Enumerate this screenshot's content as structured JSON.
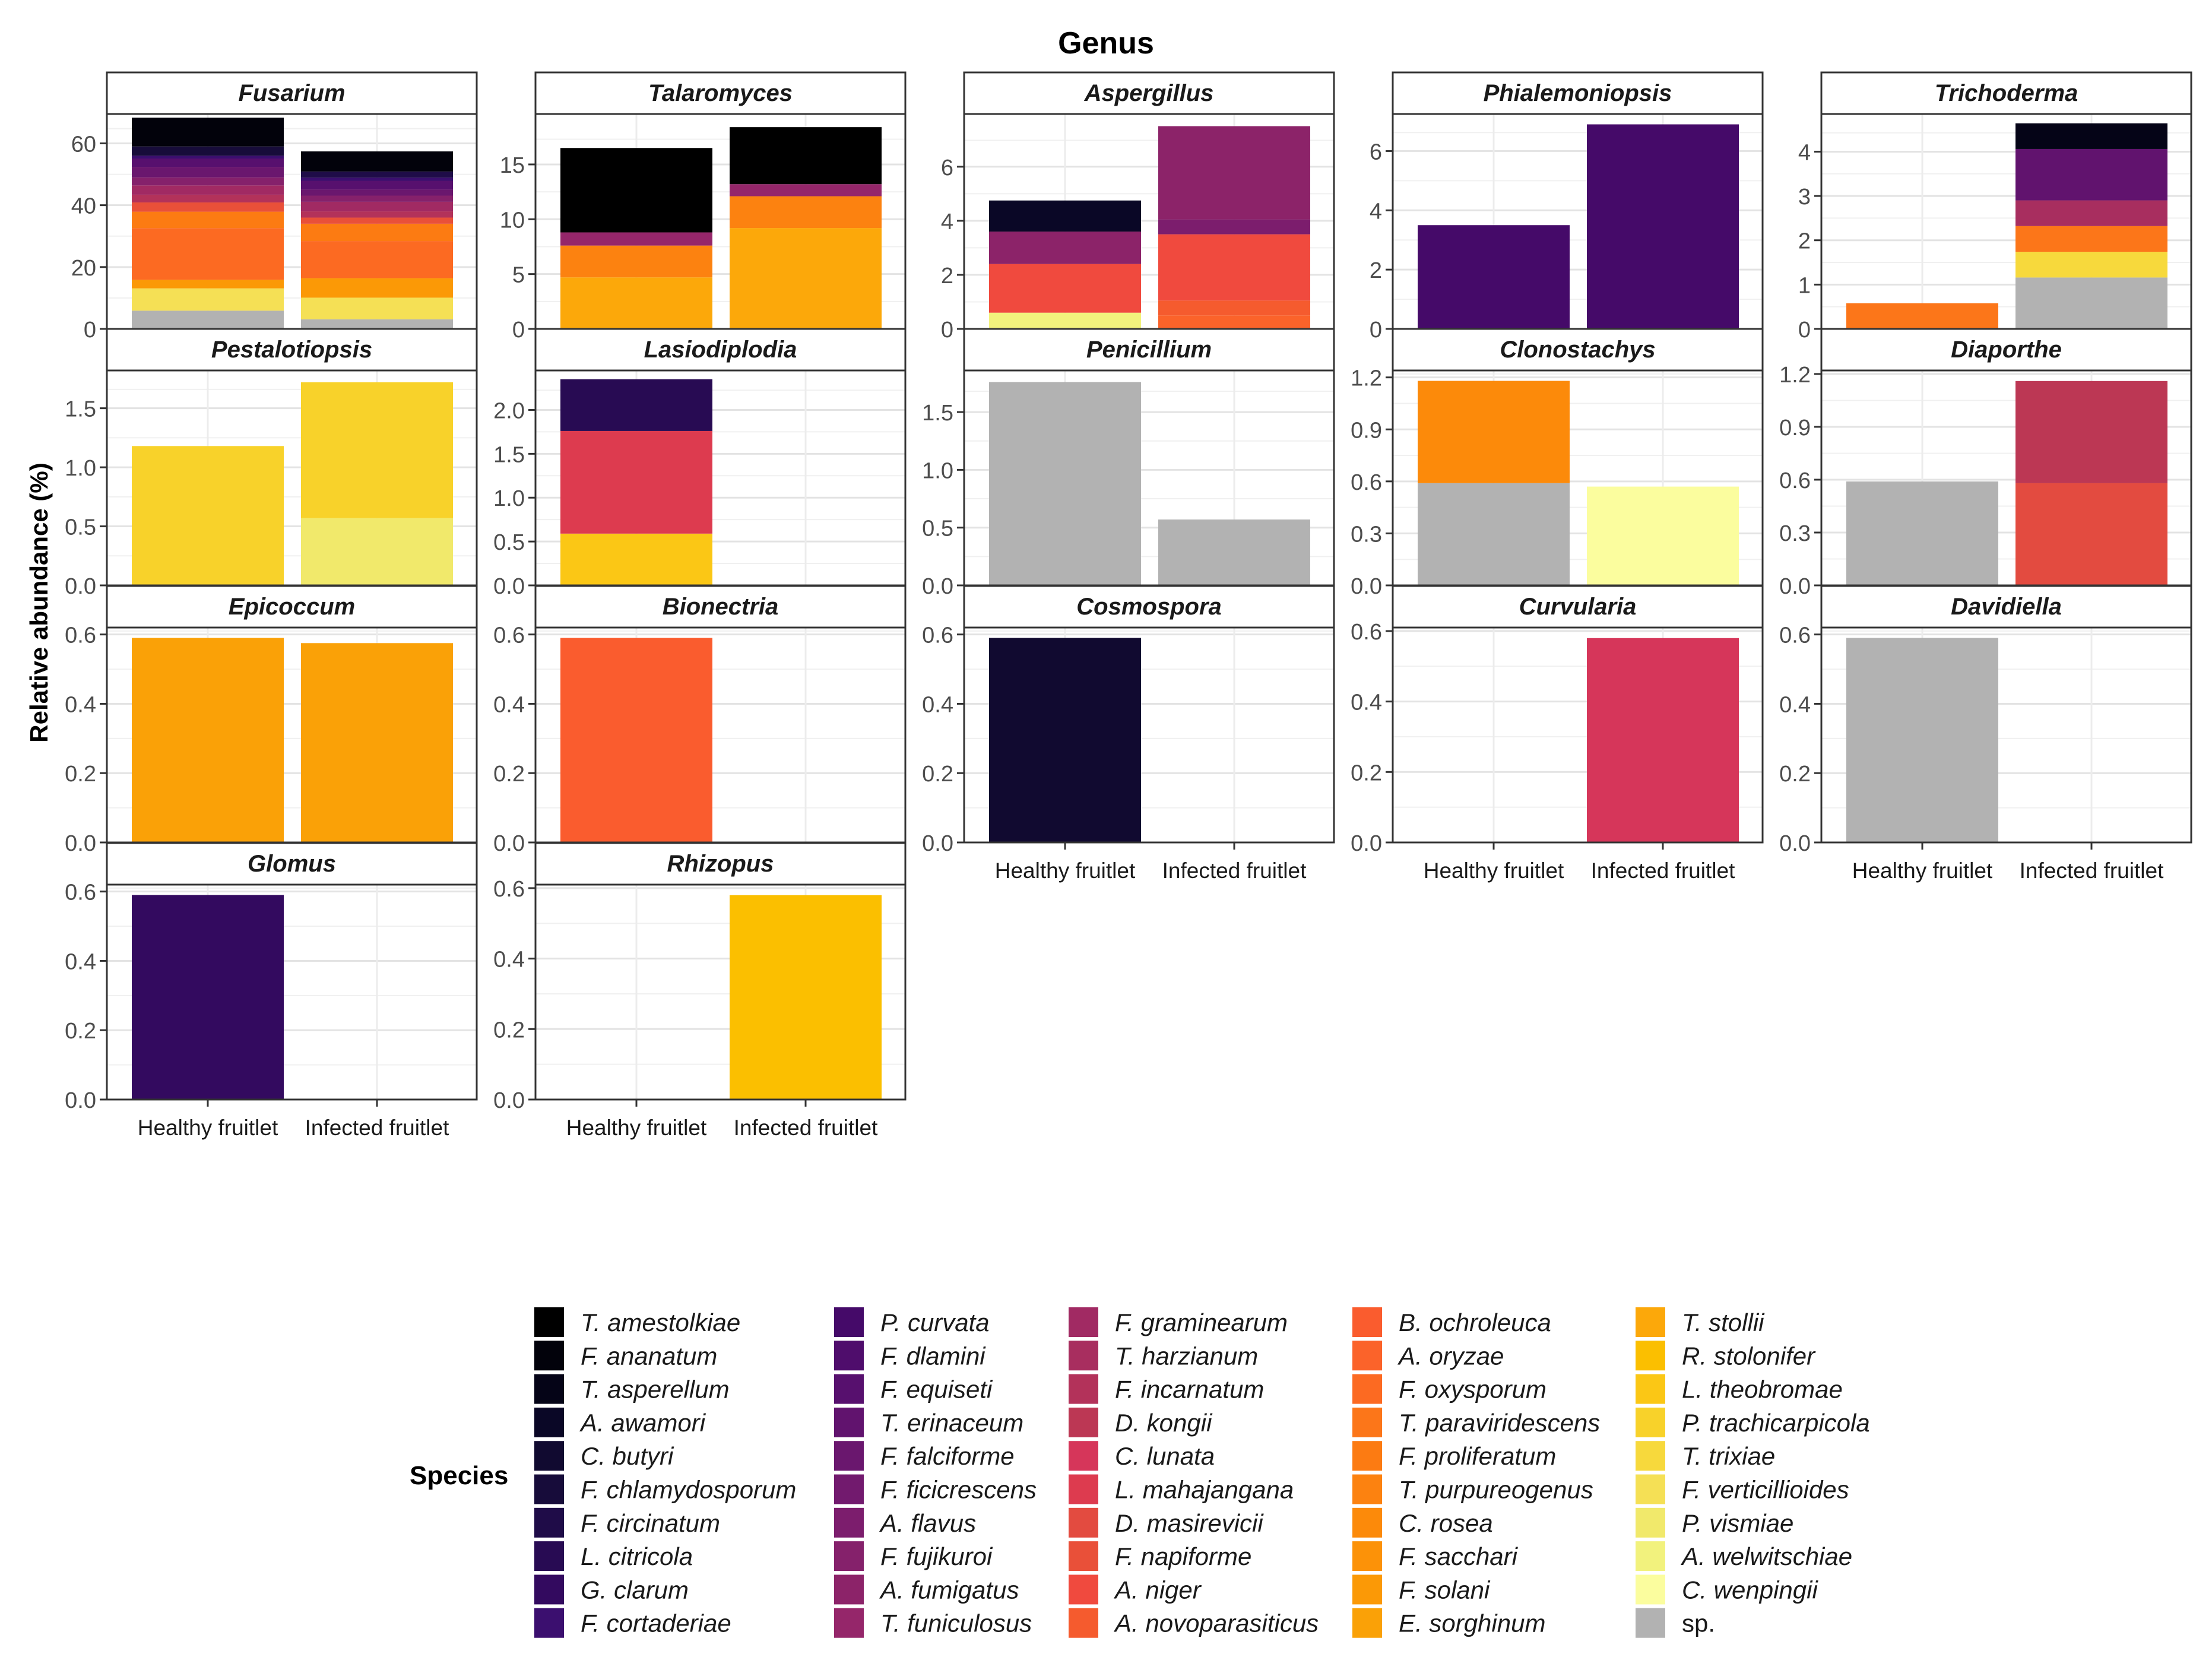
{
  "chart_data": {
    "type": "bar",
    "stacked": true,
    "title": "Genus",
    "ylabel": "Relative abundance (%)",
    "categories": [
      "Healthy fruitlet",
      "Infected fruitlet"
    ],
    "legend_title": "Species",
    "palette": {
      "T. amestolkiae": "#000000",
      "F. ananatum": "#02020b",
      "T. asperellum": "#050417",
      "A. awamori": "#0a0726",
      "C. butyri": "#110a30",
      "F. chlamydosporum": "#170c3a",
      "F. circinatum": "#1f0c48",
      "L. citricola": "#280b53",
      "G. clarum": "#330a5f",
      "F. cortaderiae": "#3b0f6f",
      "P. curvata": "#450a69",
      "F. dlamini": "#4f0d6c",
      "F. equiseti": "#57106e",
      "T. erinaceum": "#61136e",
      "F. falciforme": "#6a176e",
      "F. ficicrescens": "#721a6e",
      "A. flavus": "#7c1d6d",
      "F. fujikuroi": "#85216b",
      "A. fumigatus": "#8c2369",
      "T. funiculosus": "#95266a",
      "F. graminearum": "#a12a63",
      "T. harzianum": "#a82e5f",
      "F. incarnatum": "#b3325a",
      "D. kongii": "#bc3754",
      "C. lunata": "#d6365a",
      "L. mahajangana": "#dd3b4f",
      "D. masirevicii": "#e34b40",
      "F. napiforme": "#e95039",
      "A. niger": "#f04a3e",
      "A. novoparasiticus": "#f55b2e",
      "B. ochroleuca": "#fa5c2e",
      "A. oryzae": "#fb632a",
      "F. oxysporum": "#fc6a22",
      "T. paraviridescens": "#fc7619",
      "F. proliferatum": "#fc7b12",
      "T. purpureogenus": "#fc8210",
      "C. rosea": "#fc8a0a",
      "F. sacchari": "#fc9208",
      "F. solani": "#fb9906",
      "E. sorghinum": "#faa107",
      "T. stollii": "#fca80a",
      "R. stolonifer": "#fbbf00",
      "L. theobromae": "#fbc715",
      "P. trachicarpicola": "#f8d22a",
      "T. trixiae": "#f7d93c",
      "F. verticillioides": "#f5e055",
      "P. vismiae": "#f1e96b",
      "A. welwitschiae": "#f2f27d",
      "C. wenpingii": "#fbfd9e",
      "sp.": "#b2b2b2"
    },
    "panels": [
      {
        "genus": "Fusarium",
        "ylim": [
          0,
          69.5
        ],
        "yticks": [
          0,
          20,
          40,
          60
        ],
        "tick_labels": [
          "0",
          "20",
          "40",
          "60"
        ],
        "stacks": [
          [
            [
              "sp.",
              5.9
            ],
            [
              "F. verticillioides",
              7.2
            ],
            [
              "F. solani",
              2.8
            ],
            [
              "F. oxysporum",
              16.7
            ],
            [
              "F. proliferatum",
              5.3
            ],
            [
              "F. napiforme",
              3.0
            ],
            [
              "F. incarnatum",
              2.5
            ],
            [
              "F. graminearum",
              3.0
            ],
            [
              "F. fujikuroi",
              2.6
            ],
            [
              "F. falciforme",
              3.4
            ],
            [
              "F. equiseti",
              2.7
            ],
            [
              "F. cortaderiae",
              0.9
            ],
            [
              "F. chlamydosporum",
              3.0
            ],
            [
              "F. ananatum",
              9.3
            ]
          ],
          [
            [
              "sp.",
              3.1
            ],
            [
              "F. verticillioides",
              7.0
            ],
            [
              "F. solani",
              6.3
            ],
            [
              "F. oxysporum",
              12.0
            ],
            [
              "F. proliferatum",
              5.6
            ],
            [
              "F. napiforme",
              2.0
            ],
            [
              "F. incarnatum",
              2.0
            ],
            [
              "F. graminearum",
              3.1
            ],
            [
              "F. fujikuroi",
              2.0
            ],
            [
              "F. falciforme",
              2.0
            ],
            [
              "F. equiseti",
              2.8
            ],
            [
              "F. cortaderiae",
              1.0
            ],
            [
              "F. circinatum",
              2.0
            ],
            [
              "F. ananatum",
              6.5
            ]
          ]
        ]
      },
      {
        "genus": "Talaromyces",
        "ylim": [
          0,
          19.6
        ],
        "yticks": [
          0,
          5,
          10,
          15
        ],
        "tick_labels": [
          "0",
          "5",
          "10",
          "15"
        ],
        "stacks": [
          [
            [
              "T. stollii",
              4.7
            ],
            [
              "T. purpureogenus",
              2.9
            ],
            [
              "T. funiculosus",
              1.2
            ],
            [
              "T. amestolkiae",
              7.7
            ]
          ],
          [
            [
              "T. stollii",
              9.2
            ],
            [
              "T. purpureogenus",
              2.9
            ],
            [
              "T. funiculosus",
              1.1
            ],
            [
              "T. amestolkiae",
              5.2
            ]
          ]
        ]
      },
      {
        "genus": "Aspergillus",
        "ylim": [
          0,
          7.95
        ],
        "yticks": [
          0,
          2,
          4,
          6
        ],
        "tick_labels": [
          "0",
          "2",
          "4",
          "6"
        ],
        "stacks": [
          [
            [
              "A. welwitschiae",
              0.6
            ],
            [
              "A. niger",
              1.8
            ],
            [
              "A. fumigatus",
              1.2
            ],
            [
              "A. awamori",
              1.15
            ]
          ],
          [
            [
              "A. oryzae",
              0.5
            ],
            [
              "A. novoparasiticus",
              0.55
            ],
            [
              "A. niger",
              2.45
            ],
            [
              "A. flavus",
              0.55
            ],
            [
              "A. fumigatus",
              3.45
            ]
          ]
        ]
      },
      {
        "genus": "Phialemoniopsis",
        "ylim": [
          0,
          7.25
        ],
        "yticks": [
          0,
          2,
          4,
          6
        ],
        "tick_labels": [
          "0",
          "2",
          "4",
          "6"
        ],
        "stacks": [
          [
            [
              "P. curvata",
              3.5
            ]
          ],
          [
            [
              "P. curvata",
              6.9
            ]
          ]
        ]
      },
      {
        "genus": "Trichoderma",
        "ylim": [
          0,
          4.85
        ],
        "yticks": [
          0,
          1,
          2,
          3,
          4
        ],
        "tick_labels": [
          "0",
          "1",
          "2",
          "3",
          "4"
        ],
        "stacks": [
          [
            [
              "T. paraviridescens",
              0.58
            ]
          ],
          [
            [
              "sp.",
              1.16
            ],
            [
              "T. trixiae",
              0.58
            ],
            [
              "T. paraviridescens",
              0.58
            ],
            [
              "T. harzianum",
              0.58
            ],
            [
              "T. erinaceum",
              1.16
            ],
            [
              "T. asperellum",
              0.58
            ]
          ]
        ]
      },
      {
        "genus": "Pestalotiopsis",
        "ylim": [
          0,
          1.82
        ],
        "yticks": [
          0,
          0.5,
          1,
          1.5
        ],
        "tick_labels": [
          "0.0",
          "0.5",
          "1.0",
          "1.5"
        ],
        "stacks": [
          [
            [
              "P. trachicarpicola",
              1.18
            ]
          ],
          [
            [
              "P. vismiae",
              0.57
            ],
            [
              "P. trachicarpicola",
              1.15
            ]
          ]
        ]
      },
      {
        "genus": "Lasiodiplodia",
        "ylim": [
          0,
          2.45
        ],
        "yticks": [
          0,
          0.5,
          1,
          1.5,
          2
        ],
        "tick_labels": [
          "0.0",
          "0.5",
          "1.0",
          "1.5",
          "2.0"
        ],
        "stacks": [
          [
            [
              "L. theobromae",
              0.59
            ],
            [
              "L. mahajangana",
              1.17
            ],
            [
              "L. citricola",
              0.59
            ]
          ],
          []
        ]
      },
      {
        "genus": "Penicillium",
        "ylim": [
          0,
          1.86
        ],
        "yticks": [
          0,
          0.5,
          1,
          1.5
        ],
        "tick_labels": [
          "0.0",
          "0.5",
          "1.0",
          "1.5"
        ],
        "stacks": [
          [
            [
              "sp.",
              1.76
            ]
          ],
          [
            [
              "sp.",
              0.57
            ]
          ]
        ]
      },
      {
        "genus": "Clonostachys",
        "ylim": [
          0,
          1.24
        ],
        "yticks": [
          0,
          0.3,
          0.6,
          0.9,
          1.2
        ],
        "tick_labels": [
          "0.0",
          "0.3",
          "0.6",
          "0.9",
          "1.2"
        ],
        "stacks": [
          [
            [
              "sp.",
              0.59
            ],
            [
              "C. rosea",
              0.59
            ]
          ],
          [
            [
              "C. wenpingii",
              0.57
            ]
          ]
        ]
      },
      {
        "genus": "Diaporthe",
        "ylim": [
          0,
          1.22
        ],
        "yticks": [
          0,
          0.3,
          0.6,
          0.9,
          1.2
        ],
        "tick_labels": [
          "0.0",
          "0.3",
          "0.6",
          "0.9",
          "1.2"
        ],
        "stacks": [
          [
            [
              "sp.",
              0.59
            ]
          ],
          [
            [
              "D. masirevicii",
              0.58
            ],
            [
              "D. kongii",
              0.58
            ]
          ]
        ]
      },
      {
        "genus": "Epicoccum",
        "ylim": [
          0,
          0.62
        ],
        "yticks": [
          0,
          0.2,
          0.4,
          0.6
        ],
        "tick_labels": [
          "0.0",
          "0.2",
          "0.4",
          "0.6"
        ],
        "stacks": [
          [
            [
              "E. sorghinum",
              0.59
            ]
          ],
          [
            [
              "E. sorghinum",
              0.575
            ]
          ]
        ]
      },
      {
        "genus": "Bionectria",
        "ylim": [
          0,
          0.62
        ],
        "yticks": [
          0,
          0.2,
          0.4,
          0.6
        ],
        "tick_labels": [
          "0.0",
          "0.2",
          "0.4",
          "0.6"
        ],
        "stacks": [
          [
            [
              "B. ochroleuca",
              0.59
            ]
          ],
          []
        ]
      },
      {
        "genus": "Cosmospora",
        "ylim": [
          0,
          0.62
        ],
        "yticks": [
          0,
          0.2,
          0.4,
          0.6
        ],
        "tick_labels": [
          "0.0",
          "0.2",
          "0.4",
          "0.6"
        ],
        "stacks": [
          [
            [
              "C. butyri",
              0.59
            ]
          ],
          []
        ]
      },
      {
        "genus": "Curvularia",
        "ylim": [
          0,
          0.61
        ],
        "yticks": [
          0,
          0.2,
          0.4,
          0.6
        ],
        "tick_labels": [
          "0.0",
          "0.2",
          "0.4",
          "0.6"
        ],
        "stacks": [
          [],
          [
            [
              "C. lunata",
              0.58
            ]
          ]
        ]
      },
      {
        "genus": "Davidiella",
        "ylim": [
          0,
          0.62
        ],
        "yticks": [
          0,
          0.2,
          0.4,
          0.6
        ],
        "tick_labels": [
          "0.0",
          "0.2",
          "0.4",
          "0.6"
        ],
        "stacks": [
          [
            [
              "sp.",
              0.59
            ]
          ],
          []
        ]
      },
      {
        "genus": "Glomus",
        "ylim": [
          0,
          0.62
        ],
        "yticks": [
          0,
          0.2,
          0.4,
          0.6
        ],
        "tick_labels": [
          "0.0",
          "0.2",
          "0.4",
          "0.6"
        ],
        "stacks": [
          [
            [
              "G. clarum",
              0.59
            ]
          ],
          []
        ]
      },
      {
        "genus": "Rhizopus",
        "ylim": [
          0,
          0.61
        ],
        "yticks": [
          0,
          0.2,
          0.4,
          0.6
        ],
        "tick_labels": [
          "0.0",
          "0.2",
          "0.4",
          "0.6"
        ],
        "stacks": [
          [],
          [
            [
              "R. stolonifer",
              0.58
            ]
          ]
        ]
      }
    ],
    "legend_columns": [
      [
        "T. amestolkiae",
        "F. ananatum",
        "T. asperellum",
        "A. awamori",
        "C. butyri",
        "F. chlamydosporum",
        "F. circinatum",
        "L. citricola",
        "G. clarum",
        "F. cortaderiae"
      ],
      [
        "P. curvata",
        "F. dlamini",
        "F. equiseti",
        "T. erinaceum",
        "F. falciforme",
        "F. ficicrescens",
        "A. flavus",
        "F. fujikuroi",
        "A. fumigatus",
        "T. funiculosus"
      ],
      [
        "F. graminearum",
        "T. harzianum",
        "F. incarnatum",
        "D. kongii",
        "C. lunata",
        "L. mahajangana",
        "D. masirevicii",
        "F. napiforme",
        "A. niger",
        "A. novoparasiticus"
      ],
      [
        "B. ochroleuca",
        "A. oryzae",
        "F. oxysporum",
        "T. paraviridescens",
        "F. proliferatum",
        "T. purpureogenus",
        "C. rosea",
        "F. sacchari",
        "F. solani",
        "E. sorghinum"
      ],
      [
        "T. stollii",
        "R. stolonifer",
        "L. theobromae",
        "P. trachicarpicola",
        "T. trixiae",
        "F. verticillioides",
        "P. vismiae",
        "A. welwitschiae",
        "C. wenpingii",
        "sp."
      ]
    ]
  }
}
